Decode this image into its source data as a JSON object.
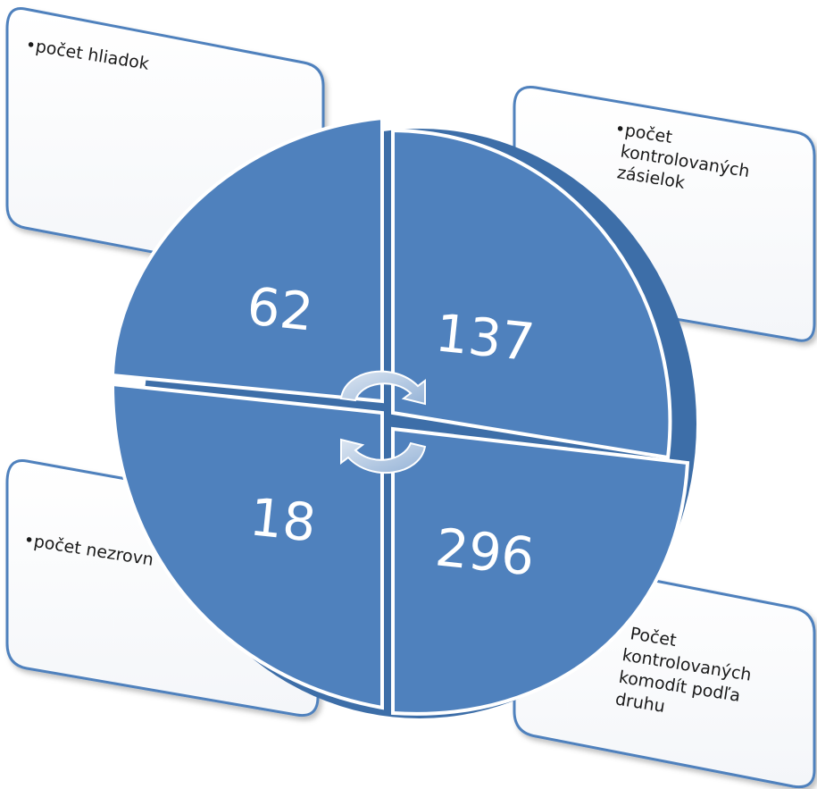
{
  "segments": [
    {
      "value": "62",
      "label": "•počet hliadok"
    },
    {
      "value": "137",
      "label_lines": [
        "•počet",
        "kontrolovaných",
        "zásielok"
      ]
    },
    {
      "value": "18",
      "label": "•počet nezrovn"
    },
    {
      "value": "296",
      "label_lines": [
        "Počet",
        "kontrolovaných",
        "komodít podľa",
        "druhu"
      ]
    }
  ],
  "colors": {
    "segment_fill": "#4f81bd",
    "segment_side": "#3d6ea8",
    "box_border": "#4f81bd",
    "box_fill": "#fdfdfd",
    "arrow": "#b8cce4"
  }
}
